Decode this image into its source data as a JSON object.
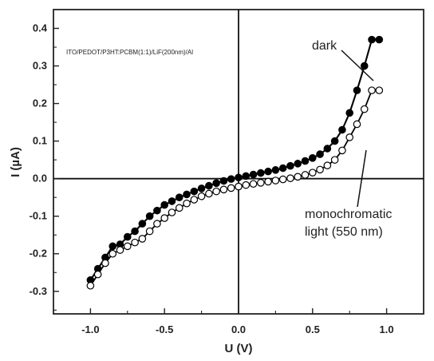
{
  "chart_data": {
    "type": "scatter",
    "xlabel": "U (V)",
    "ylabel": "I (µA)",
    "xlim": [
      -1.25,
      1.25
    ],
    "ylim": [
      -0.36,
      0.45
    ],
    "x_ticks": [
      -1.0,
      -0.5,
      0.0,
      0.5,
      1.0
    ],
    "y_ticks": [
      -0.3,
      -0.2,
      -0.1,
      0.0,
      0.1,
      0.2,
      0.3,
      0.4
    ],
    "x_tick_labels": [
      "-1.0",
      "-0.5",
      "0.0",
      "0.5",
      "1.0"
    ],
    "y_tick_labels": [
      "-0.3",
      "-0.2",
      "-0.1",
      "0.0",
      "0.1",
      "0.2",
      "0.3",
      "0.4"
    ],
    "annotations": {
      "device": "ITO/PEDOT/P3HT:PCBM(1:1)/LiF(200nm)/Al",
      "dark": "dark",
      "light_line1": "monochromatic",
      "light_line2": "light (550 nm)"
    },
    "series": [
      {
        "name": "dark",
        "marker": "filled-circle",
        "color": "#000000",
        "x": [
          -1.0,
          -0.95,
          -0.9,
          -0.85,
          -0.8,
          -0.75,
          -0.7,
          -0.65,
          -0.6,
          -0.55,
          -0.5,
          -0.45,
          -0.4,
          -0.35,
          -0.3,
          -0.25,
          -0.2,
          -0.15,
          -0.1,
          -0.05,
          0.0,
          0.05,
          0.1,
          0.15,
          0.2,
          0.25,
          0.3,
          0.35,
          0.4,
          0.45,
          0.5,
          0.55,
          0.6,
          0.65,
          0.7,
          0.75,
          0.8,
          0.85,
          0.9,
          0.95
        ],
        "y": [
          -0.27,
          -0.24,
          -0.21,
          -0.18,
          -0.175,
          -0.155,
          -0.14,
          -0.12,
          -0.1,
          -0.085,
          -0.07,
          -0.06,
          -0.05,
          -0.042,
          -0.034,
          -0.026,
          -0.019,
          -0.012,
          -0.006,
          -0.001,
          0.003,
          0.007,
          0.011,
          0.015,
          0.019,
          0.023,
          0.028,
          0.034,
          0.04,
          0.047,
          0.055,
          0.065,
          0.08,
          0.1,
          0.13,
          0.175,
          0.235,
          0.3,
          0.37,
          0.37
        ]
      },
      {
        "name": "monochromatic light (550 nm)",
        "marker": "open-circle",
        "color": "#000000",
        "x": [
          -1.0,
          -0.95,
          -0.9,
          -0.85,
          -0.8,
          -0.75,
          -0.7,
          -0.65,
          -0.6,
          -0.55,
          -0.5,
          -0.45,
          -0.4,
          -0.35,
          -0.3,
          -0.25,
          -0.2,
          -0.15,
          -0.1,
          -0.05,
          0.0,
          0.05,
          0.1,
          0.15,
          0.2,
          0.25,
          0.3,
          0.35,
          0.4,
          0.45,
          0.5,
          0.55,
          0.6,
          0.65,
          0.7,
          0.75,
          0.8,
          0.85,
          0.9,
          0.95
        ],
        "y": [
          -0.285,
          -0.255,
          -0.225,
          -0.2,
          -0.19,
          -0.18,
          -0.17,
          -0.16,
          -0.14,
          -0.12,
          -0.105,
          -0.09,
          -0.078,
          -0.066,
          -0.056,
          -0.047,
          -0.04,
          -0.034,
          -0.029,
          -0.025,
          -0.021,
          -0.017,
          -0.014,
          -0.011,
          -0.008,
          -0.005,
          -0.002,
          0.001,
          0.005,
          0.01,
          0.016,
          0.024,
          0.035,
          0.05,
          0.075,
          0.11,
          0.145,
          0.185,
          0.235,
          0.235
        ]
      }
    ]
  }
}
